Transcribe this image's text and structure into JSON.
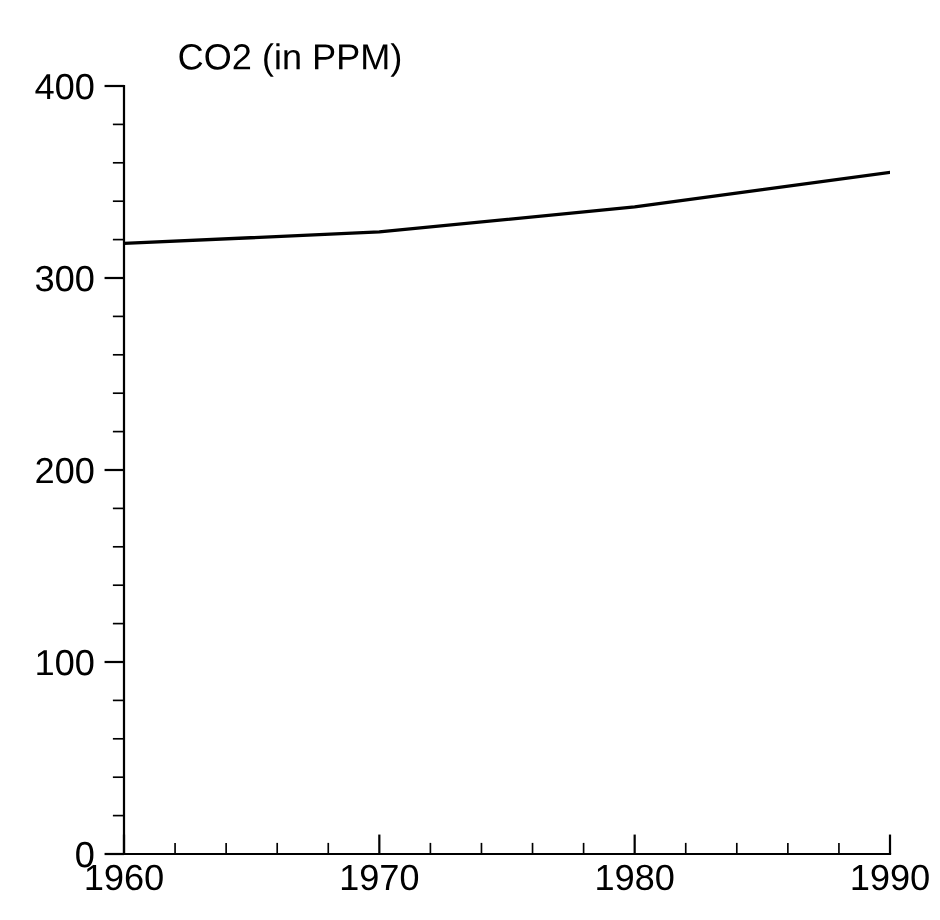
{
  "chart_data": {
    "type": "line",
    "title": "CO2 (in PPM)",
    "x": [
      1960,
      1970,
      1980,
      1985,
      1990
    ],
    "values": [
      318,
      324,
      337,
      346,
      355
    ],
    "color": "#000000",
    "xlim": [
      1960,
      1990
    ],
    "ylim": [
      0,
      400
    ],
    "xticks": [
      1960,
      {
        "value": 1962,
        "label": null
      },
      {
        "value": 1964,
        "label": null
      },
      {
        "value": 1966,
        "label": null
      },
      {
        "value": 1968,
        "label": null
      },
      1970,
      {
        "value": 1972,
        "label": null
      },
      {
        "value": 1974,
        "label": null
      },
      {
        "value": 1976,
        "label": null
      },
      {
        "value": 1978,
        "label": null
      },
      1980,
      {
        "value": 1982,
        "label": null
      },
      {
        "value": 1984,
        "label": null
      },
      {
        "value": 1986,
        "label": null
      },
      {
        "value": 1988,
        "label": null
      },
      1990
    ],
    "yticks": [
      0,
      {
        "value": 20,
        "label": null
      },
      {
        "value": 40,
        "label": null
      },
      {
        "value": 60,
        "label": null
      },
      {
        "value": 80,
        "label": null
      },
      100,
      {
        "value": 120,
        "label": null
      },
      {
        "value": 140,
        "label": null
      },
      {
        "value": 160,
        "label": null
      },
      {
        "value": 180,
        "label": null
      },
      200,
      {
        "value": 220,
        "label": null
      },
      {
        "value": 240,
        "label": null
      },
      {
        "value": 260,
        "label": null
      },
      {
        "value": 280,
        "label": null
      },
      300,
      {
        "value": 320,
        "label": null
      },
      {
        "value": 340,
        "label": null
      },
      {
        "value": 360,
        "label": null
      },
      {
        "value": 380,
        "label": null
      },
      400
    ],
    "grid": false,
    "marker": "none",
    "line_style": "solid"
  }
}
